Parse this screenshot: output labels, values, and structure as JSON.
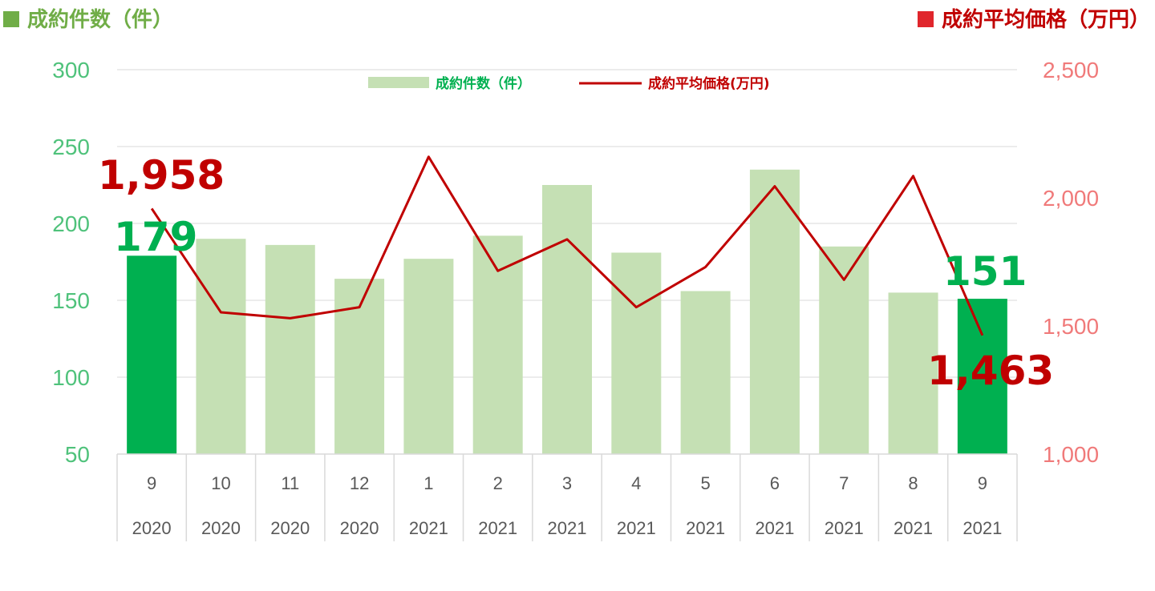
{
  "header": {
    "left_title": "成約件数（件）",
    "right_title": "成約平均価格（万円）"
  },
  "chart_data": {
    "type": "bar",
    "categories": [
      "9",
      "10",
      "11",
      "12",
      "1",
      "2",
      "3",
      "4",
      "5",
      "6",
      "7",
      "8",
      "9"
    ],
    "years": [
      "2020",
      "2020",
      "2020",
      "2020",
      "2021",
      "2021",
      "2021",
      "2021",
      "2021",
      "2021",
      "2021",
      "2021",
      "2021"
    ],
    "series": [
      {
        "name": "成約件数（件）",
        "type": "bar",
        "axis": "left",
        "values": [
          179,
          190,
          186,
          164,
          177,
          192,
          225,
          181,
          156,
          235,
          185,
          155,
          151
        ],
        "highlight": [
          0,
          12
        ]
      },
      {
        "name": "成約平均価格(万円)",
        "type": "line",
        "axis": "right",
        "values": [
          1958,
          1553,
          1530,
          1573,
          2160,
          1715,
          1838,
          1573,
          1730,
          2045,
          1680,
          2085,
          1463
        ]
      }
    ],
    "y_left": {
      "ylim": [
        50,
        300
      ],
      "ticks": [
        "50",
        "100",
        "150",
        "200",
        "250",
        "300"
      ]
    },
    "y_right": {
      "ylim": [
        1000,
        2500
      ],
      "ticks": [
        "1,000",
        "1,500",
        "2,000",
        "2,500"
      ]
    },
    "annotations": {
      "first_count": "179",
      "last_count": "151",
      "first_price": "1,958",
      "last_price": "1,463"
    },
    "legend": {
      "placement": "top-center"
    },
    "grid": true,
    "colors": {
      "bar": "#c5e0b4",
      "bar_highlight": "#00b050",
      "line": "#c00000",
      "left_axis_text": "#4fc27b",
      "right_axis_text": "#f07a7a",
      "grid": "#d9d9d9"
    }
  }
}
